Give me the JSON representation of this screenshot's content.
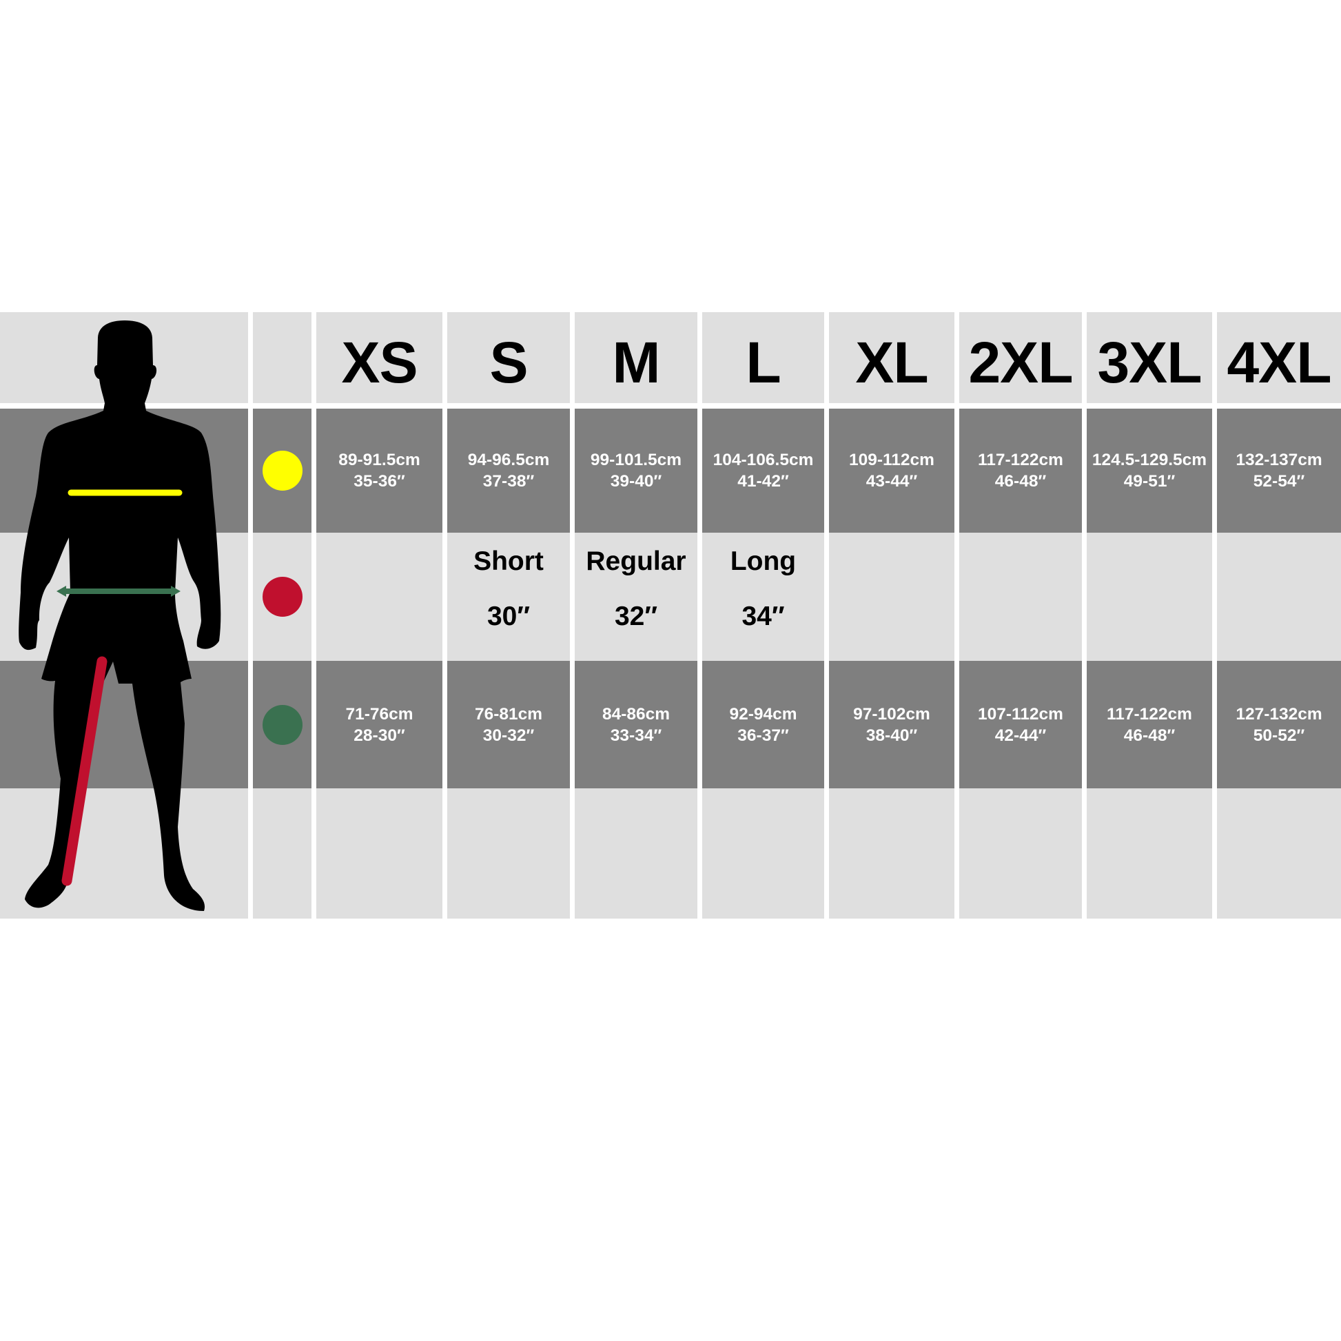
{
  "sizes": [
    "XS",
    "S",
    "M",
    "L",
    "XL",
    "2XL",
    "3XL",
    "4XL"
  ],
  "rows": {
    "chest": {
      "color": "#ffff00",
      "values": [
        {
          "cm": "89-91.5cm",
          "in": "35-36″"
        },
        {
          "cm": "94-96.5cm",
          "in": "37-38″"
        },
        {
          "cm": "99-101.5cm",
          "in": "39-40″"
        },
        {
          "cm": "104-106.5cm",
          "in": "41-42″"
        },
        {
          "cm": "109-112cm",
          "in": "43-44″"
        },
        {
          "cm": "117-122cm",
          "in": "46-48″"
        },
        {
          "cm": "124.5-129.5cm",
          "in": "49-51″"
        },
        {
          "cm": "132-137cm",
          "in": "52-54″"
        }
      ]
    },
    "inside_leg": {
      "color": "#c0102e",
      "values": [
        {
          "label": "",
          "length": ""
        },
        {
          "label": "Short",
          "length": "30″"
        },
        {
          "label": "Regular",
          "length": "32″"
        },
        {
          "label": "Long",
          "length": "34″"
        },
        {
          "label": "",
          "length": ""
        },
        {
          "label": "",
          "length": ""
        },
        {
          "label": "",
          "length": ""
        },
        {
          "label": "",
          "length": ""
        }
      ]
    },
    "waist": {
      "color": "#3a7150",
      "values": [
        {
          "cm": "71-76cm",
          "in": "28-30″"
        },
        {
          "cm": "76-81cm",
          "in": "30-32″"
        },
        {
          "cm": "84-86cm",
          "in": "33-34″"
        },
        {
          "cm": "92-94cm",
          "in": "36-37″"
        },
        {
          "cm": "97-102cm",
          "in": "38-40″"
        },
        {
          "cm": "107-112cm",
          "in": "42-44″"
        },
        {
          "cm": "117-122cm",
          "in": "46-48″"
        },
        {
          "cm": "127-132cm",
          "in": "50-52″"
        }
      ]
    }
  },
  "colors": {
    "light_cell": "#dfdfdf",
    "dark_cell": "#7f7f7f",
    "silhouette": "#000000"
  }
}
